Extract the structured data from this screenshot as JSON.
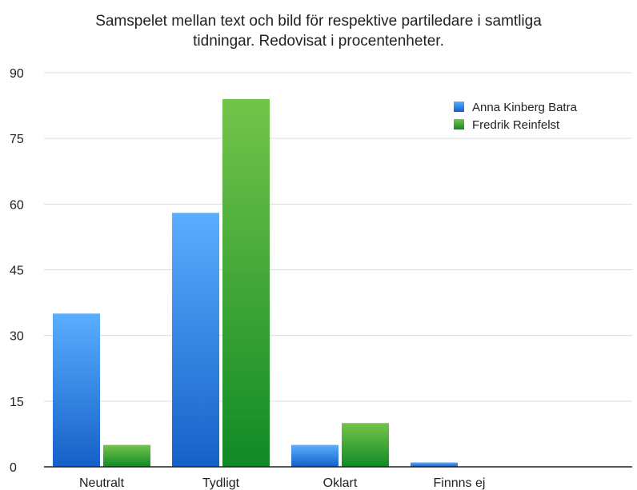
{
  "chart_data": {
    "type": "bar",
    "title_lines": [
      "Samspelet mellan text och bild för respektive partiledare i samtliga",
      "tidningar. Redovisat i procentenheter."
    ],
    "categories": [
      "Neutralt",
      "Tydligt",
      "Oklart",
      "Finnns ej"
    ],
    "series": [
      {
        "name": "Anna Kinberg  Batra",
        "values": [
          35,
          58,
          5,
          1
        ]
      },
      {
        "name": "Fredrik Reinfelst",
        "values": [
          5,
          84,
          10,
          0
        ]
      }
    ],
    "ylim": [
      0,
      90
    ],
    "yticks": [
      0,
      15,
      30,
      45,
      60,
      75,
      90
    ],
    "grid": true,
    "legend_position": "top-right",
    "colors": {
      "series_0_top": "#5aaeff",
      "series_0_bottom": "#1560c8",
      "series_1_top": "#74c44a",
      "series_1_bottom": "#108a26",
      "grid": "#dcdcdc",
      "axis": "#222222"
    }
  }
}
